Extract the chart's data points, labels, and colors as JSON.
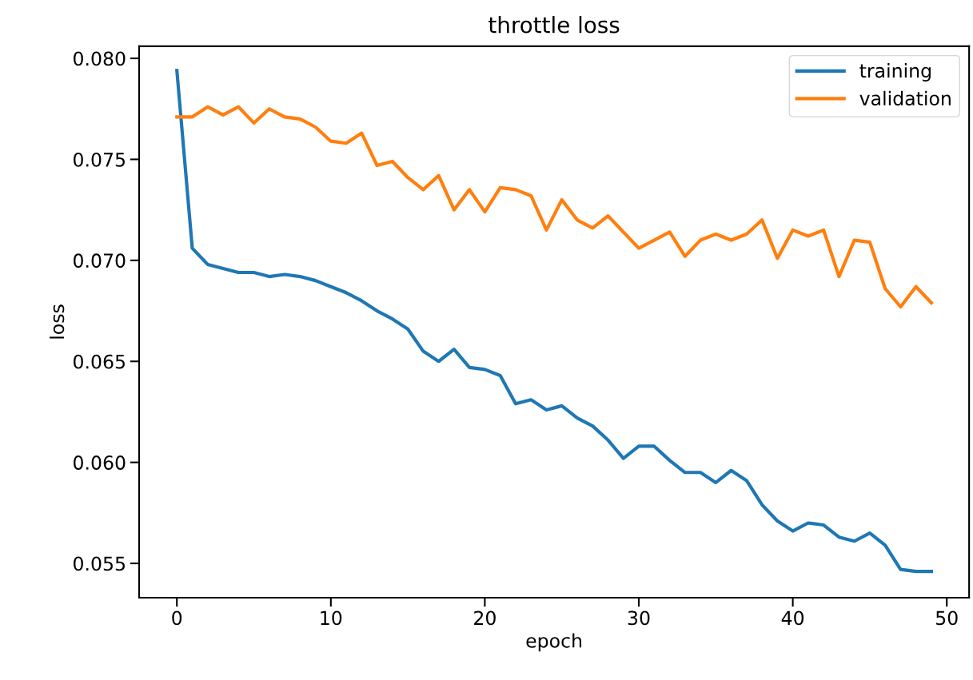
{
  "chart_data": {
    "type": "line",
    "title": "throttle loss",
    "xlabel": "epoch",
    "ylabel": "loss",
    "x": [
      0,
      1,
      2,
      3,
      4,
      5,
      6,
      7,
      8,
      9,
      10,
      11,
      12,
      13,
      14,
      15,
      16,
      17,
      18,
      19,
      20,
      21,
      22,
      23,
      24,
      25,
      26,
      27,
      28,
      29,
      30,
      31,
      32,
      33,
      34,
      35,
      36,
      37,
      38,
      39,
      40,
      41,
      42,
      43,
      44,
      45,
      46,
      47,
      48,
      49
    ],
    "series": [
      {
        "name": "training",
        "color": "#1f77b4",
        "values": [
          0.0794,
          0.0706,
          0.0698,
          0.0696,
          0.0694,
          0.0694,
          0.0692,
          0.0693,
          0.0692,
          0.069,
          0.0687,
          0.0684,
          0.068,
          0.0675,
          0.0671,
          0.0666,
          0.0655,
          0.065,
          0.0656,
          0.0647,
          0.0646,
          0.0643,
          0.0629,
          0.0631,
          0.0626,
          0.0628,
          0.0622,
          0.0618,
          0.0611,
          0.0602,
          0.0608,
          0.0608,
          0.0601,
          0.0595,
          0.0595,
          0.059,
          0.0596,
          0.0591,
          0.0579,
          0.0571,
          0.0566,
          0.057,
          0.0569,
          0.0563,
          0.0561,
          0.0565,
          0.0559,
          0.0547,
          0.0546,
          0.0546
        ]
      },
      {
        "name": "validation",
        "color": "#ff7f0e",
        "values": [
          0.0771,
          0.0771,
          0.0776,
          0.0772,
          0.0776,
          0.0768,
          0.0775,
          0.0771,
          0.077,
          0.0766,
          0.0759,
          0.0758,
          0.0763,
          0.0747,
          0.0749,
          0.0741,
          0.0735,
          0.0742,
          0.0725,
          0.0735,
          0.0724,
          0.0736,
          0.0735,
          0.0732,
          0.0715,
          0.073,
          0.072,
          0.0716,
          0.0722,
          0.0714,
          0.0706,
          0.071,
          0.0714,
          0.0702,
          0.071,
          0.0713,
          0.071,
          0.0713,
          0.072,
          0.0701,
          0.0715,
          0.0712,
          0.0715,
          0.0692,
          0.071,
          0.0709,
          0.0686,
          0.0677,
          0.0687,
          0.0679
        ]
      }
    ],
    "xlim": [
      -2.45,
      51.45
    ],
    "xticks": [
      0,
      10,
      20,
      30,
      40,
      50
    ],
    "ylim": [
      0.0533,
      0.0806
    ],
    "yticks": [
      {
        "value": 0.055,
        "label": "0.055"
      },
      {
        "value": 0.06,
        "label": "0.060"
      },
      {
        "value": 0.065,
        "label": "0.065"
      },
      {
        "value": 0.07,
        "label": "0.070"
      },
      {
        "value": 0.075,
        "label": "0.075"
      },
      {
        "value": 0.08,
        "label": "0.080"
      }
    ],
    "grid": false,
    "legend": "top right",
    "marker": "none",
    "line_style": "solid"
  }
}
